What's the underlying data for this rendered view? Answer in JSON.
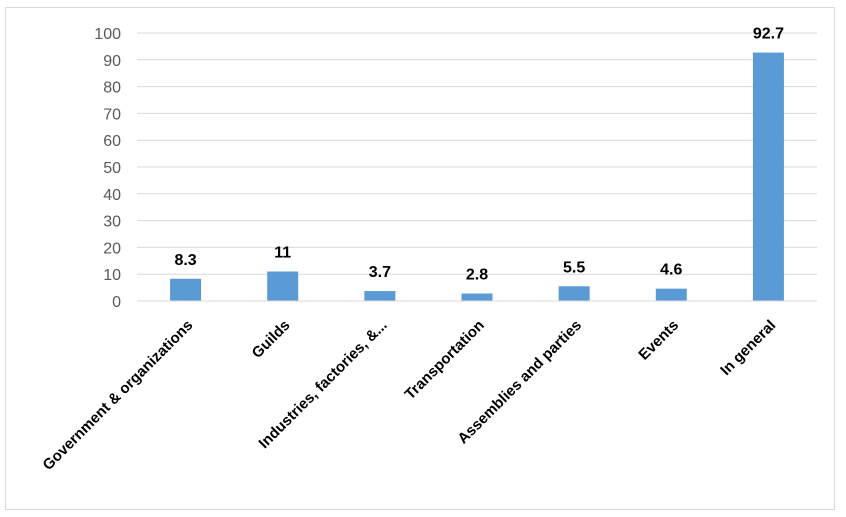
{
  "chart_data": {
    "type": "bar",
    "categories": [
      "Government & organizations",
      "Guilds",
      "Industries, factories, &...",
      "Transportation",
      "Assemblies and parties",
      "Events",
      "In general"
    ],
    "values": [
      8.3,
      11,
      3.7,
      2.8,
      5.5,
      4.6,
      92.7
    ],
    "data_labels": [
      "8.3",
      "11",
      "3.7",
      "2.8",
      "5.5",
      "4.6",
      "92.7"
    ],
    "y_ticks": [
      "0",
      "10",
      "20",
      "30",
      "40",
      "50",
      "60",
      "70",
      "80",
      "90",
      "100"
    ],
    "ylim": [
      0,
      100
    ],
    "grid": true,
    "bar_color": "#5b9bd5",
    "grid_color": "#d9d9d9"
  }
}
